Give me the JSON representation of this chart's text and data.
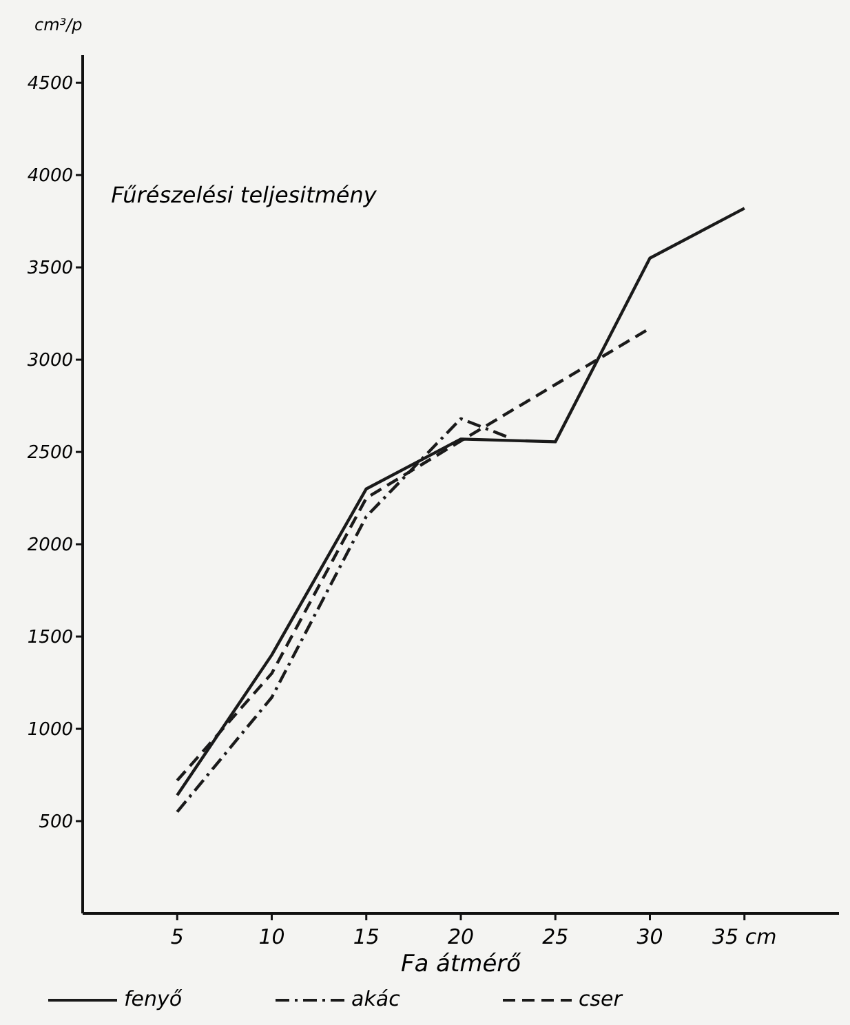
{
  "chart_data": {
    "type": "line",
    "title": "Fűrészelési teljesitmény",
    "xlabel": "Fa átmérő",
    "ylabel": "cm³/p",
    "xlim": [
      0,
      40
    ],
    "ylim": [
      0,
      4650
    ],
    "xticks": [
      5,
      10,
      15,
      20,
      25,
      30,
      {
        "value": 35,
        "label": "35 cm"
      }
    ],
    "yticks": [
      500,
      1000,
      1500,
      2000,
      2500,
      3000,
      3500,
      4000,
      4500
    ],
    "legend": "bottom",
    "grid": false,
    "series": [
      {
        "name": "fenyő",
        "color": "#1a1a1a",
        "line_style": "solid",
        "x": [
          5,
          10,
          15,
          20,
          25,
          30,
          35
        ],
        "values": [
          640,
          1400,
          2300,
          2570,
          2555,
          3550,
          3820
        ]
      },
      {
        "name": "akác",
        "color": "#1a1a1a",
        "line_style": "dashdot",
        "x": [
          5,
          10,
          15,
          20,
          22.5
        ],
        "values": [
          550,
          1170,
          2150,
          2680,
          2580
        ]
      },
      {
        "name": "cser",
        "color": "#1a1a1a",
        "line_style": "dashed",
        "x": [
          5,
          10,
          15,
          20,
          30
        ],
        "values": [
          720,
          1300,
          2250,
          2560,
          3170
        ]
      }
    ]
  }
}
